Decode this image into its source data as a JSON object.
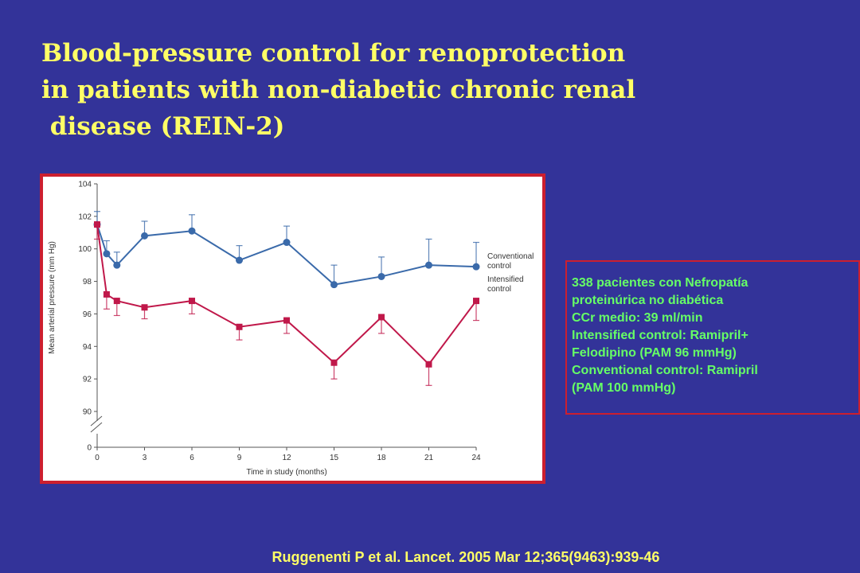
{
  "title": {
    "line1": "Blood-pressure control for renoprotection",
    "line2": "in patients with non-diabetic chronic renal",
    "line3": " disease (REIN-2)"
  },
  "info_box": {
    "lines": [
      "338 pacientes con Nefropatía",
      "proteinúrica no diabética",
      "CCr medio: 39 ml/min",
      "Intensified control: Ramipril+",
      "Felodipino (PAM 96 mmHg)",
      "Conventional control: Ramipril",
      "(PAM 100 mmHg)"
    ]
  },
  "citation": "Ruggenenti P et al. Lancet. 2005 Mar 12;365(9463):939-46",
  "colors": {
    "conventional": "#3a6aaa",
    "intensified": "#c0184a",
    "frame": "#cc1f2f"
  },
  "chart_data": {
    "type": "line",
    "title": "",
    "xlabel": "Time in study (months)",
    "ylabel": "Mean arterial pressure (mm Hg)",
    "xlim": [
      0,
      24
    ],
    "ylim": [
      90,
      104
    ],
    "x_ticks": [
      0,
      3,
      6,
      9,
      12,
      15,
      18,
      21,
      24
    ],
    "y_ticks": [
      90,
      92,
      94,
      96,
      98,
      100,
      102,
      104
    ],
    "y_break_zero": "0",
    "legend_placement": "right",
    "series": [
      {
        "name": "Conventional control",
        "legend_lines": [
          "Conventional",
          "control"
        ],
        "marker": "circle",
        "x": [
          0,
          0.6,
          1.25,
          3,
          6,
          9,
          12,
          15,
          18,
          21,
          24
        ],
        "y": [
          101.5,
          99.7,
          99.0,
          100.8,
          101.1,
          99.3,
          100.4,
          97.8,
          98.3,
          99.0,
          98.9
        ],
        "error_upper": [
          102.3,
          100.5,
          99.8,
          101.7,
          102.1,
          100.2,
          101.4,
          99.0,
          99.5,
          100.6,
          100.4
        ]
      },
      {
        "name": "Intensified control",
        "legend_lines": [
          "Intensified",
          "control"
        ],
        "marker": "square",
        "x": [
          0,
          0.6,
          1.25,
          3,
          6,
          9,
          12,
          15,
          18,
          21,
          24
        ],
        "y": [
          101.5,
          97.2,
          96.8,
          96.4,
          96.8,
          95.2,
          95.6,
          93.0,
          95.8,
          92.9,
          96.8
        ],
        "error_lower": [
          100.6,
          96.3,
          95.9,
          95.7,
          96.0,
          94.4,
          94.8,
          92.0,
          94.8,
          91.6,
          95.6
        ]
      }
    ]
  }
}
